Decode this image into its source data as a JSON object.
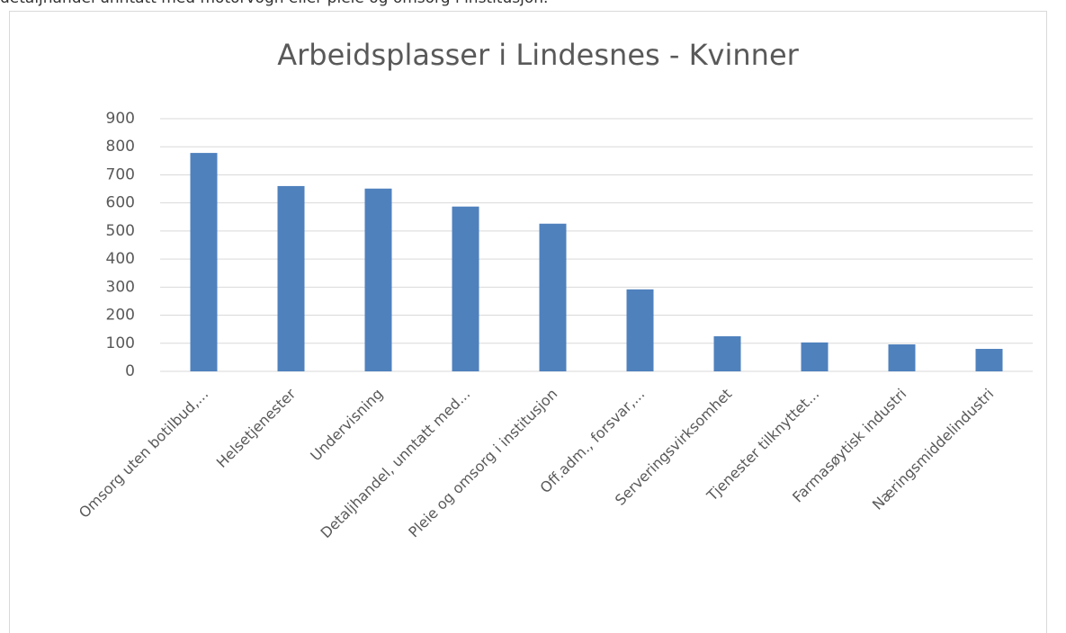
{
  "intro_text": "detaljhandel unntatt med motorvogn eller pleie og omsorg i institusjon.",
  "chart_data": {
    "type": "bar",
    "title": "Arbeidsplasser i Lindesnes - Kvinner",
    "categories": [
      "Omsorg uten botilbud,...",
      "Helsetjenester",
      "Undervisning",
      "Detaljhandel, unntatt med...",
      "Pleie og omsorg i institusjon",
      "Off.adm., forsvar,...",
      "Serveringsvirksomhet",
      "Tjenester tilknyttet...",
      "Farmasøytisk industri",
      "Næringsmiddelindustri"
    ],
    "values": [
      778,
      660,
      651,
      587,
      526,
      292,
      125,
      103,
      96,
      80
    ],
    "color": "#4f81bd",
    "ylim": [
      0,
      900
    ],
    "yticks": [
      0,
      100,
      200,
      300,
      400,
      500,
      600,
      700,
      800,
      900
    ],
    "grid": true
  }
}
